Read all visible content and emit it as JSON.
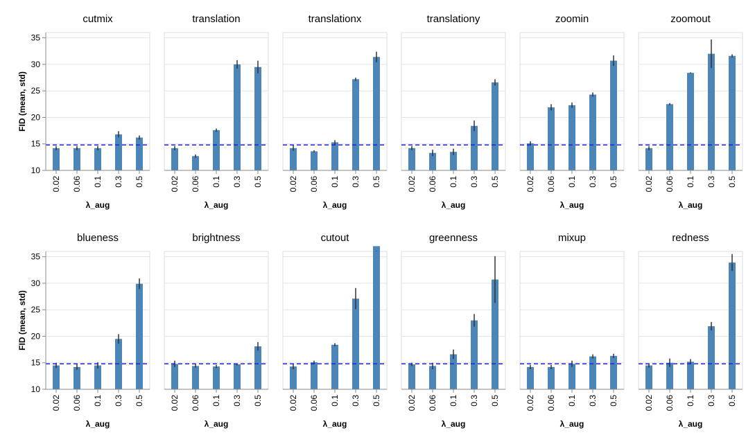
{
  "chart_data": {
    "type": "bar",
    "layout": "facet-grid",
    "xlabel": "λ_aug",
    "ylabel": "FID (mean, std)",
    "categories": [
      "0.02",
      "0.06",
      "0.1",
      "0.3",
      "0.5"
    ],
    "ylim": [
      10,
      36
    ],
    "yticks": [
      10,
      15,
      20,
      25,
      30,
      35
    ],
    "grid": true,
    "bar_color": "#4c86b8",
    "error_bar_color": "#333333",
    "baseline": {
      "value": 14.8,
      "color": "#2222dd",
      "style": "dashed"
    },
    "panels": [
      {
        "title": "cutmix",
        "values": [
          14.2,
          14.2,
          14.2,
          16.8,
          16.2
        ],
        "errors": [
          0.4,
          0.4,
          0.4,
          0.6,
          0.4
        ]
      },
      {
        "title": "translation",
        "values": [
          14.2,
          12.7,
          17.6,
          30.0,
          29.5
        ],
        "errors": [
          0.4,
          0.3,
          0.3,
          0.8,
          1.2
        ]
      },
      {
        "title": "translationx",
        "values": [
          14.2,
          13.6,
          15.3,
          27.2,
          31.4
        ],
        "errors": [
          0.5,
          0.2,
          0.4,
          0.3,
          1.0
        ]
      },
      {
        "title": "translationy",
        "values": [
          14.2,
          13.3,
          13.5,
          18.4,
          26.6
        ],
        "errors": [
          0.4,
          0.6,
          0.6,
          1.0,
          0.6
        ]
      },
      {
        "title": "zoomin",
        "values": [
          15.1,
          21.9,
          22.3,
          24.3,
          30.7
        ],
        "errors": [
          0.4,
          0.6,
          0.5,
          0.4,
          1.0
        ]
      },
      {
        "title": "zoomout",
        "values": [
          14.2,
          22.5,
          28.4,
          32.0,
          31.6
        ],
        "errors": [
          0.4,
          0.2,
          0.1,
          2.7,
          0.3
        ]
      },
      {
        "title": "blueness",
        "values": [
          14.5,
          14.2,
          14.5,
          19.5,
          29.9
        ],
        "errors": [
          0.5,
          0.5,
          0.6,
          0.9,
          1.0
        ]
      },
      {
        "title": "brightness",
        "values": [
          14.8,
          14.4,
          14.3,
          14.7,
          18.1
        ],
        "errors": [
          0.6,
          0.3,
          0.3,
          0.2,
          0.8
        ]
      },
      {
        "title": "cutout",
        "values": [
          14.3,
          15.1,
          18.4,
          27.1,
          37.0
        ],
        "errors": [
          0.5,
          0.3,
          0.3,
          2.0,
          0.9
        ]
      },
      {
        "title": "greenness",
        "values": [
          14.7,
          14.4,
          16.6,
          23.0,
          30.7
        ],
        "errors": [
          0.3,
          0.6,
          0.9,
          1.2,
          4.4
        ]
      },
      {
        "title": "mixup",
        "values": [
          14.2,
          14.2,
          14.8,
          16.2,
          16.3
        ],
        "errors": [
          0.4,
          0.4,
          0.6,
          0.4,
          0.4
        ]
      },
      {
        "title": "redness",
        "values": [
          14.5,
          15.0,
          15.2,
          21.9,
          33.9
        ],
        "errors": [
          0.4,
          0.8,
          0.5,
          0.8,
          1.6
        ]
      }
    ]
  }
}
